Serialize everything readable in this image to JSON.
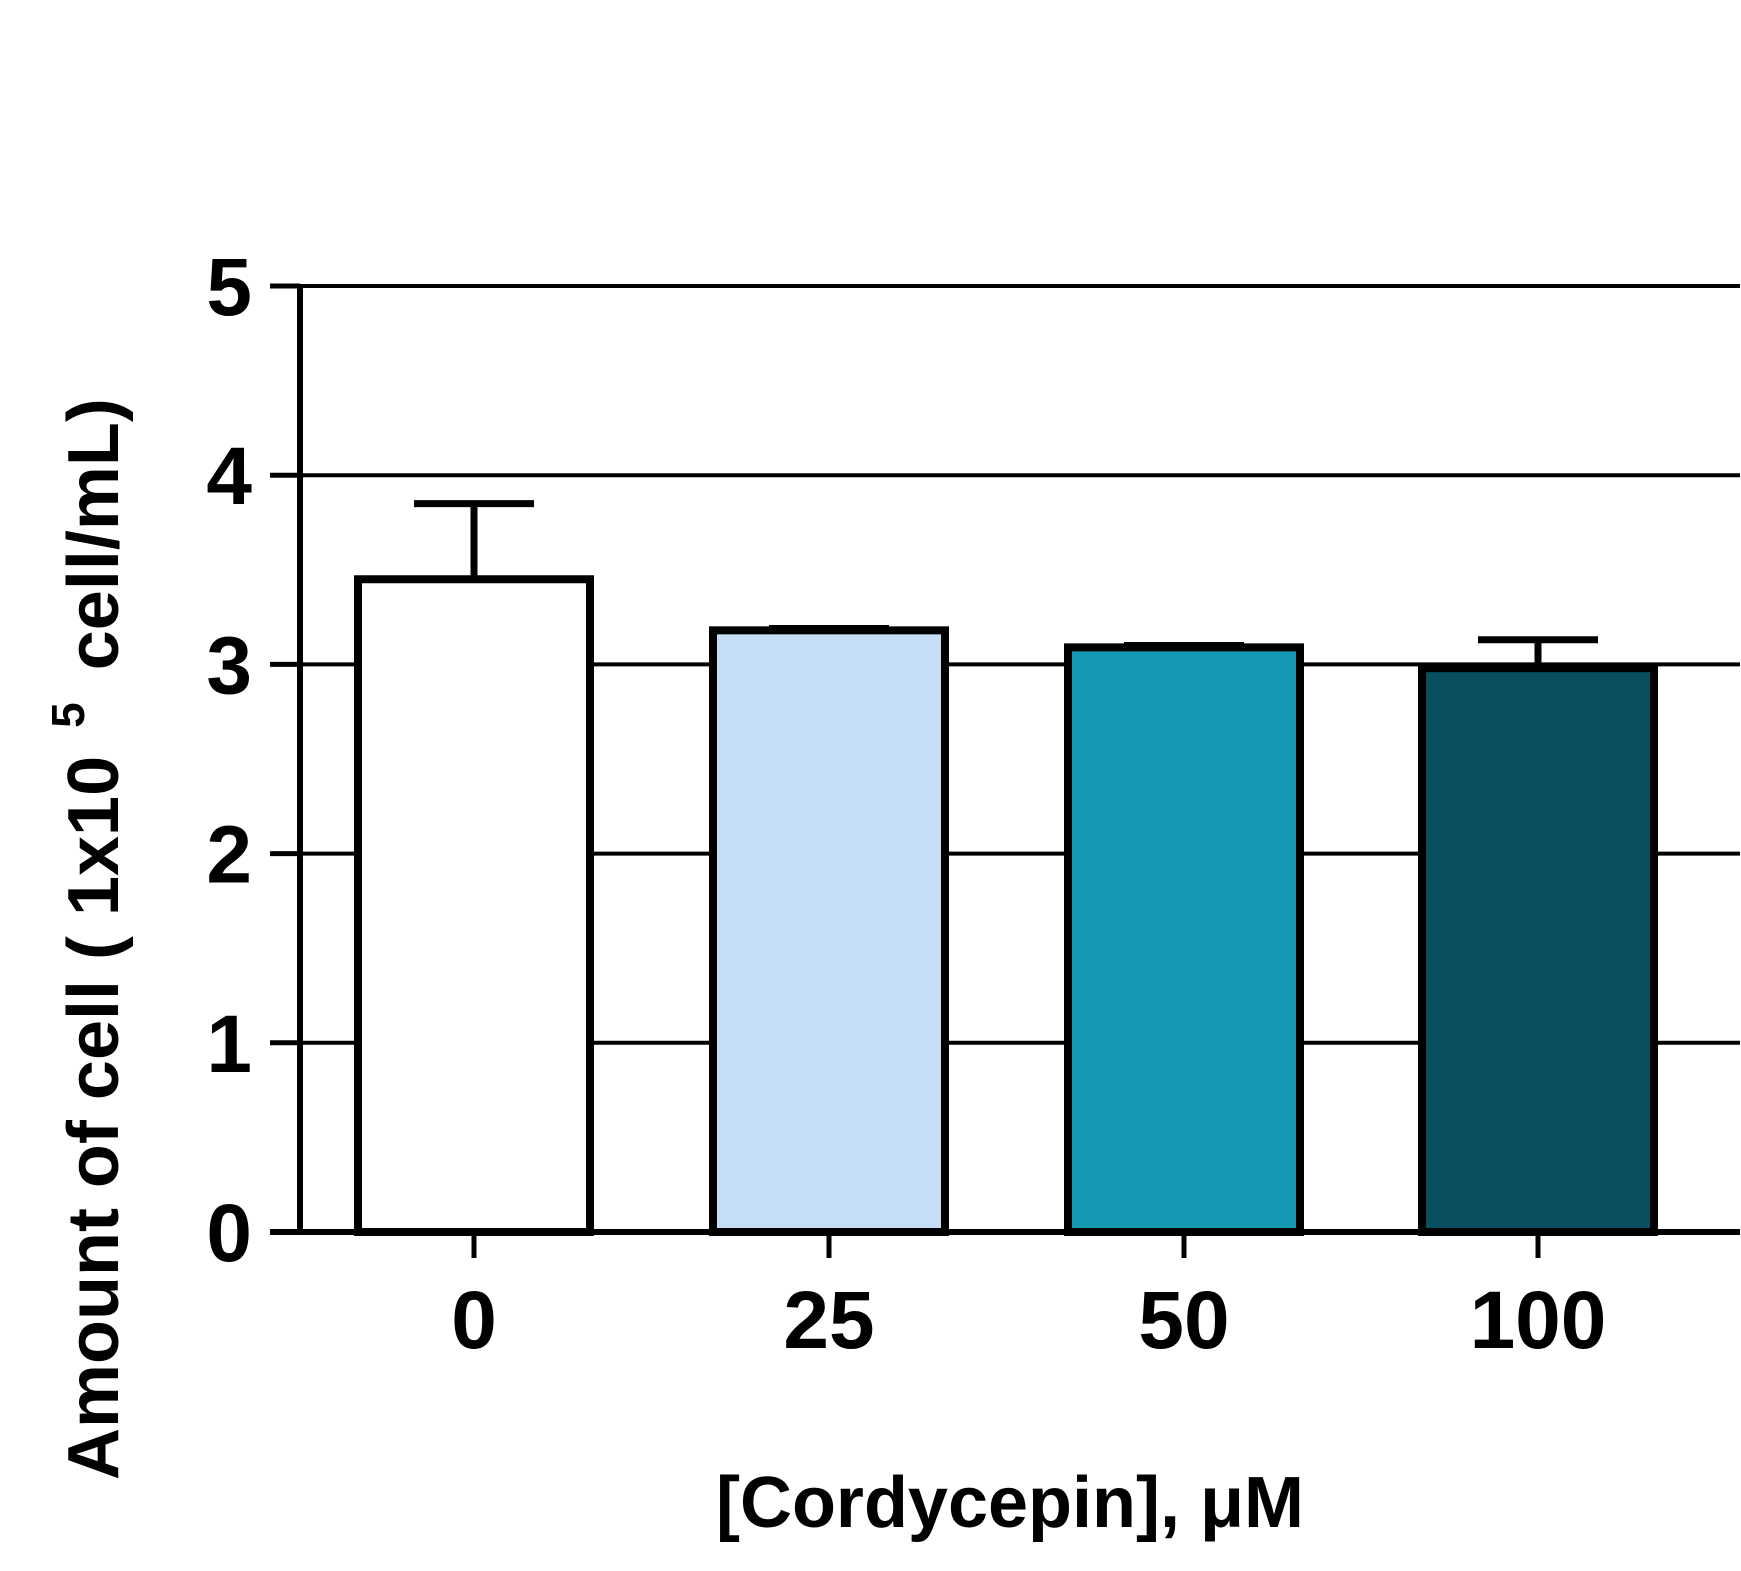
{
  "chart_data": {
    "type": "bar",
    "xlabel": "[Cordycepin], μM",
    "ylabel": {
      "before": "Amount of cell ( 1x10",
      "superscript": "5",
      "after": " cell/mL)"
    },
    "categories": [
      "0",
      "25",
      "50",
      "100"
    ],
    "values": [
      3.45,
      3.18,
      3.09,
      2.98
    ],
    "error": [
      0.4,
      0.01,
      0.01,
      0.15
    ],
    "colors": [
      "#ffffff",
      "#c6def5",
      "#1499b4",
      "#08505f"
    ],
    "ylim": [
      0,
      5
    ],
    "yticks": [
      "0",
      "1",
      "2",
      "3",
      "4",
      "5"
    ],
    "grid": true
  }
}
